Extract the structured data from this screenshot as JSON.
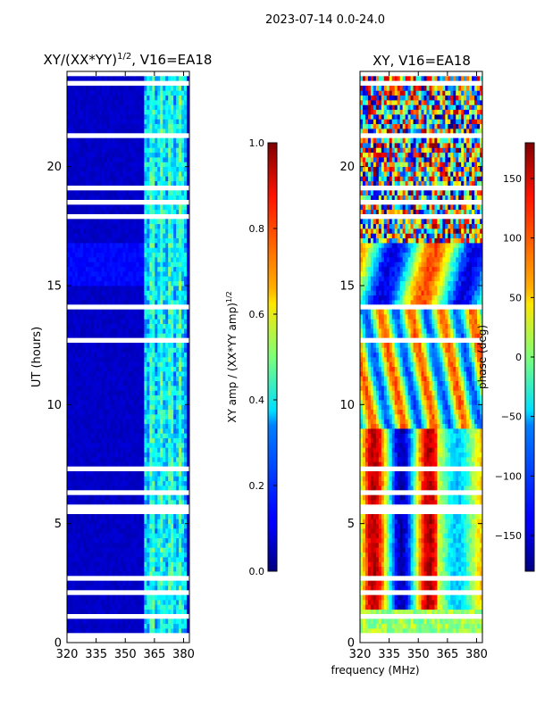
{
  "figure_title": "2023-07-14 0.0-24.0",
  "chart_data": [
    {
      "type": "heatmap",
      "title": "XY/(XX*YY)^{1/2}, V16=EA18",
      "title_parts": {
        "main": "XY/(XX*YY)",
        "sup": "1/2",
        "suffix": ", V16=EA18"
      },
      "xlabel": "",
      "ylabel": "UT (hours)",
      "xlim": [
        320,
        383
      ],
      "ylim": [
        0,
        24
      ],
      "x_ticks": [
        320,
        335,
        350,
        365,
        380
      ],
      "y_ticks": [
        0,
        5,
        10,
        15,
        20
      ],
      "colorbar": {
        "label": "XY amp / (XX*YY amp)^{1/2}",
        "label_parts": {
          "main": "XY amp / (XX*YY amp)",
          "sup": "1/2"
        },
        "range": [
          0.0,
          1.0
        ],
        "ticks": [
          "0.0",
          "0.2",
          "0.4",
          "0.6",
          "0.8",
          "1.0"
        ],
        "tick_values": [
          0.0,
          0.2,
          0.4,
          0.6,
          0.8,
          1.0
        ]
      },
      "description_values": {
        "background_level": 0.05,
        "active_band_mhz": [
          360,
          382
        ],
        "active_level_range": [
          0.2,
          0.55
        ]
      }
    },
    {
      "type": "heatmap",
      "title": "XY, V16=EA18",
      "xlabel": "frequency (MHz)",
      "ylabel": "",
      "xlim": [
        320,
        383
      ],
      "ylim": [
        0,
        24
      ],
      "x_ticks": [
        320,
        335,
        350,
        365,
        380
      ],
      "y_ticks": [
        0,
        5,
        10,
        15,
        20
      ],
      "colorbar": {
        "label": "phase (deg)",
        "range": [
          -180,
          180
        ],
        "ticks": [
          "−150",
          "−100",
          "−50",
          "0",
          "50",
          "100",
          "150"
        ],
        "tick_values": [
          -150,
          -100,
          -50,
          0,
          50,
          100,
          150
        ]
      }
    }
  ],
  "colors": {
    "jet_low": "#00007f",
    "jet_high": "#7f0000",
    "gap": "#ffffff"
  }
}
